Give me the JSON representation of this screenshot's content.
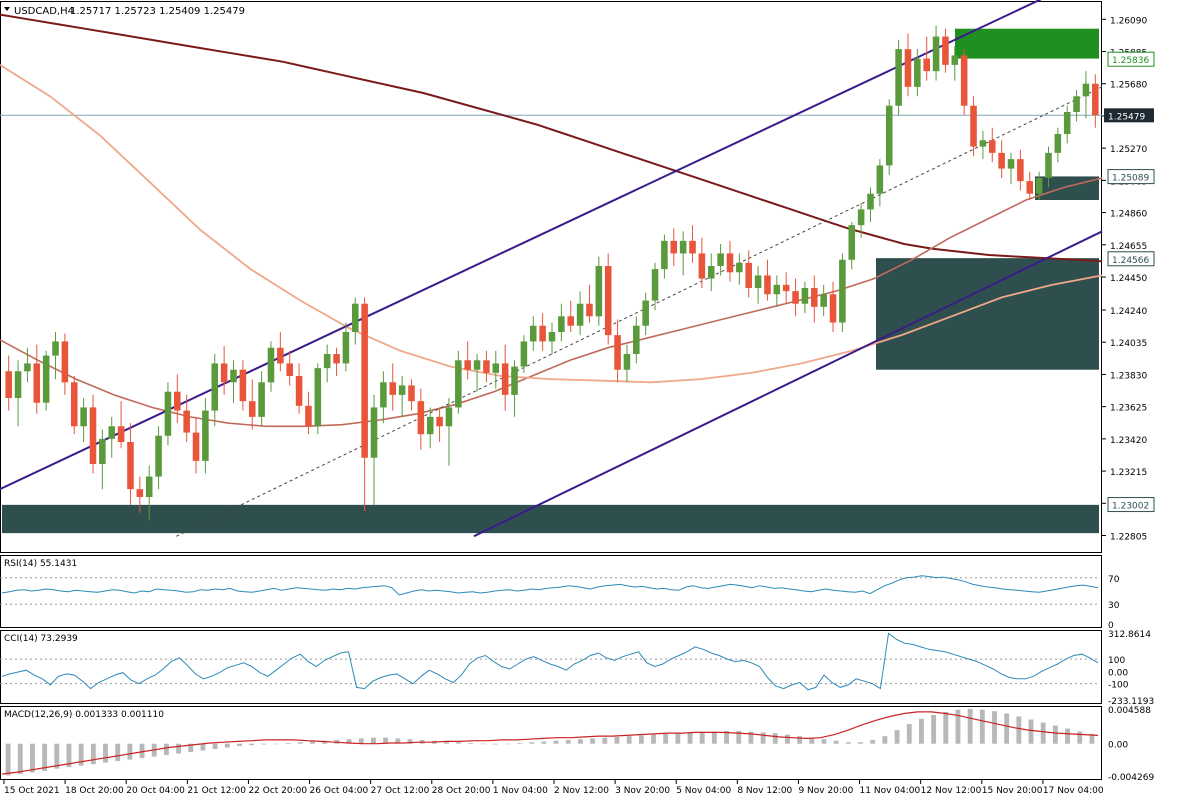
{
  "header": {
    "symbol": "USDCAD,H4",
    "ohlc": "1.25717 1.25723 1.25409 1.25479"
  },
  "colors": {
    "background": "#ffffff",
    "bull_candle": "#5a9a3c",
    "bear_candle": "#e8553a",
    "ma_long": "#7a1a1a",
    "ma_mid": "#c06a5a",
    "ma_light": "#f0a888",
    "channel": "#3b1a8c",
    "zone_dark": "#2f4f4f",
    "zone_green": "#1f8f1f",
    "rsi_line": "#2a8ab8",
    "macd_hist": "#b8b8b8",
    "macd_signal": "#cc2222"
  },
  "price_axis": {
    "ticks": [
      "1.26090",
      "1.25885",
      "1.25680",
      "1.25475",
      "1.25270",
      "1.25065",
      "1.24860",
      "1.24655",
      "1.24450",
      "1.24240",
      "1.24035",
      "1.23830",
      "1.23625",
      "1.23420",
      "1.23215",
      "1.23010",
      "1.22805"
    ],
    "current_price": "1.25479",
    "level_labels": [
      "1.25836",
      "1.25089",
      "1.24566",
      "1.23002"
    ]
  },
  "time_axis": {
    "labels": [
      "15 Oct 2021",
      "18 Oct 20:00",
      "20 Oct 04:00",
      "21 Oct 12:00",
      "22 Oct 20:00",
      "26 Oct 04:00",
      "27 Oct 12:00",
      "28 Oct 20:00",
      "1 Nov 04:00",
      "2 Nov 12:00",
      "3 Nov 20:00",
      "5 Nov 04:00",
      "8 Nov 12:00",
      "9 Nov 20:00",
      "11 Nov 04:00",
      "12 Nov 12:00",
      "15 Nov 20:00",
      "17 Nov 04:00"
    ]
  },
  "rsi": {
    "label": "RSI(14) 55.1431",
    "levels": [
      "70",
      "30",
      "0"
    ],
    "values": [
      47,
      49,
      51,
      52,
      50,
      51,
      53,
      52,
      50,
      49,
      51,
      50,
      49,
      48,
      50,
      52,
      51,
      49,
      47,
      50,
      49,
      53,
      52,
      51,
      50,
      48,
      49,
      52,
      51,
      53,
      52,
      54,
      50,
      49,
      48,
      50,
      52,
      54,
      51,
      53,
      55,
      54,
      53,
      52,
      51,
      53,
      52,
      54,
      53,
      55,
      56,
      57,
      58,
      55,
      44,
      47,
      50,
      52,
      50,
      51,
      50,
      49,
      47,
      48,
      49,
      47,
      48,
      50,
      51,
      52,
      50,
      51,
      53,
      52,
      54,
      55,
      56,
      58,
      57,
      55,
      53,
      56,
      58,
      59,
      60,
      58,
      56,
      57,
      55,
      53,
      54,
      52,
      51,
      56,
      58,
      55,
      54,
      56,
      58,
      60,
      59,
      57,
      55,
      58,
      56,
      54,
      55,
      53,
      52,
      50,
      49,
      51,
      53,
      51,
      50,
      49,
      48,
      50,
      46,
      52,
      58,
      62,
      67,
      70,
      71,
      73,
      72,
      70,
      71,
      69,
      67,
      64,
      60,
      58,
      56,
      55,
      53,
      52,
      51,
      50,
      49,
      48,
      50,
      52,
      54,
      56,
      58,
      59,
      57,
      55
    ]
  },
  "cci": {
    "label": "CCI(14) 73.2939",
    "levels": [
      "312.8614",
      "100",
      "0.00",
      "-100",
      "-233.1193"
    ],
    "values": [
      -40,
      -20,
      -5,
      10,
      -30,
      -60,
      -110,
      -40,
      -20,
      -30,
      -80,
      -140,
      -90,
      -60,
      -30,
      -10,
      -70,
      -100,
      -60,
      -30,
      20,
      80,
      110,
      50,
      -20,
      -60,
      -40,
      -10,
      30,
      50,
      70,
      40,
      -10,
      -40,
      10,
      60,
      110,
      140,
      80,
      40,
      90,
      120,
      150,
      160,
      -130,
      -140,
      -80,
      -50,
      -30,
      -20,
      -60,
      -100,
      -40,
      10,
      -20,
      -60,
      -90,
      -30,
      60,
      110,
      130,
      80,
      40,
      20,
      60,
      100,
      120,
      90,
      60,
      40,
      10,
      60,
      90,
      130,
      150,
      110,
      90,
      120,
      140,
      160,
      70,
      40,
      60,
      100,
      130,
      160,
      200,
      180,
      150,
      130,
      100,
      80,
      90,
      70,
      40,
      -50,
      -120,
      -140,
      -110,
      -90,
      -150,
      -130,
      -30,
      -90,
      -130,
      -110,
      -60,
      -80,
      -100,
      -140,
      310,
      260,
      230,
      220,
      200,
      180,
      170,
      160,
      140,
      120,
      100,
      80,
      50,
      20,
      -20,
      -50,
      -60,
      -60,
      -40,
      0,
      30,
      60,
      100,
      130,
      140,
      110,
      70
    ]
  },
  "macd": {
    "label": "MACD(12,26,9) 0.001333 0.001110",
    "levels": [
      "0.004588",
      "0.00",
      "-0.004269"
    ],
    "hist": [
      -0.0042,
      -0.004,
      -0.0038,
      -0.0036,
      -0.0033,
      -0.0031,
      -0.0029,
      -0.0027,
      -0.0025,
      -0.0023,
      -0.0021,
      -0.0019,
      -0.0017,
      -0.0015,
      -0.0013,
      -0.0011,
      -0.0009,
      -0.0007,
      -0.0005,
      -0.0003,
      -0.0002,
      -0.0001,
      0.0,
      0.0001,
      0.0002,
      0.0003,
      0.0004,
      0.0005,
      0.0006,
      0.0007,
      0.0008,
      0.0008,
      0.0007,
      0.0006,
      0.0005,
      0.0004,
      0.0003,
      0.0002,
      0.0001,
      0.0,
      -0.0001,
      0.0,
      0.0001,
      0.0002,
      0.0003,
      0.0004,
      0.0005,
      0.0006,
      0.0007,
      0.0008,
      0.0009,
      0.001,
      0.0011,
      0.0012,
      0.0013,
      0.0014,
      0.0015,
      0.0016,
      0.0016,
      0.0017,
      0.0017,
      0.0016,
      0.0015,
      0.0014,
      0.0012,
      0.001,
      0.0008,
      0.0006,
      0.0004,
      0.0002,
      0.0002,
      0.0005,
      0.001,
      0.0018,
      0.0026,
      0.0033,
      0.0038,
      0.0042,
      0.0045,
      0.0046,
      0.0045,
      0.0043,
      0.004,
      0.0036,
      0.0032,
      0.0028,
      0.0024,
      0.002,
      0.0016,
      0.0013
    ],
    "signal": [
      -0.004,
      -0.0038,
      -0.0035,
      -0.0032,
      -0.0029,
      -0.0026,
      -0.0023,
      -0.002,
      -0.0017,
      -0.0014,
      -0.0011,
      -0.0008,
      -0.0005,
      -0.0003,
      -0.0001,
      0.0001,
      0.0002,
      0.0003,
      0.0004,
      0.0005,
      0.0005,
      0.0005,
      0.0004,
      0.0003,
      0.0002,
      0.0001,
      0.0,
      0.0,
      0.0001,
      0.0001,
      0.0002,
      0.0002,
      0.0003,
      0.0003,
      0.0004,
      0.0004,
      0.0005,
      0.0005,
      0.0006,
      0.0007,
      0.0008,
      0.0008,
      0.0009,
      0.001,
      0.001,
      0.0011,
      0.0012,
      0.0013,
      0.0014,
      0.0014,
      0.0015,
      0.0015,
      0.0015,
      0.0014,
      0.0013,
      0.0011,
      0.0009,
      0.0008,
      0.0007,
      0.0008,
      0.0012,
      0.0018,
      0.0025,
      0.0031,
      0.0036,
      0.004,
      0.0042,
      0.0042,
      0.004,
      0.0037,
      0.0033,
      0.0029,
      0.0025,
      0.0021,
      0.0018,
      0.0016,
      0.0014,
      0.0013,
      0.0012,
      0.0011
    ]
  },
  "chart_data": {
    "type": "candlestick",
    "price_ylim": [
      1.227,
      1.262
    ],
    "grid": false,
    "candles": [
      [
        1.2385,
        1.2395,
        1.236,
        1.2368
      ],
      [
        1.2368,
        1.2392,
        1.235,
        1.2385
      ],
      [
        1.2385,
        1.24,
        1.2378,
        1.239
      ],
      [
        1.239,
        1.2402,
        1.2358,
        1.2365
      ],
      [
        1.2365,
        1.2398,
        1.236,
        1.2395
      ],
      [
        1.2395,
        1.241,
        1.238,
        1.2404
      ],
      [
        1.2404,
        1.2409,
        1.237,
        1.2378
      ],
      [
        1.2378,
        1.2382,
        1.2345,
        1.235
      ],
      [
        1.235,
        1.2368,
        1.234,
        1.2362
      ],
      [
        1.2362,
        1.237,
        1.232,
        1.2326
      ],
      [
        1.2326,
        1.2348,
        1.231,
        1.2342
      ],
      [
        1.2342,
        1.2356,
        1.233,
        1.235
      ],
      [
        1.235,
        1.2366,
        1.2336,
        1.234
      ],
      [
        1.234,
        1.2352,
        1.23,
        1.231
      ],
      [
        1.231,
        1.2318,
        1.2295,
        1.2305
      ],
      [
        1.2305,
        1.2325,
        1.229,
        1.2318
      ],
      [
        1.2318,
        1.235,
        1.231,
        1.2344
      ],
      [
        1.2344,
        1.2378,
        1.2338,
        1.2372
      ],
      [
        1.2372,
        1.2383,
        1.2352,
        1.236
      ],
      [
        1.236,
        1.237,
        1.234,
        1.2346
      ],
      [
        1.2346,
        1.2356,
        1.232,
        1.2328
      ],
      [
        1.2328,
        1.2368,
        1.232,
        1.236
      ],
      [
        1.236,
        1.2396,
        1.235,
        1.239
      ],
      [
        1.239,
        1.2401,
        1.237,
        1.2378
      ],
      [
        1.2378,
        1.2392,
        1.2365,
        1.2386
      ],
      [
        1.2386,
        1.2392,
        1.236,
        1.2366
      ],
      [
        1.2366,
        1.238,
        1.2348,
        1.2356
      ],
      [
        1.2356,
        1.2385,
        1.235,
        1.2378
      ],
      [
        1.2378,
        1.2404,
        1.2372,
        1.24
      ],
      [
        1.24,
        1.241,
        1.2385,
        1.239
      ],
      [
        1.239,
        1.2398,
        1.2376,
        1.2382
      ],
      [
        1.2382,
        1.239,
        1.2358,
        1.2363
      ],
      [
        1.2363,
        1.2372,
        1.2345,
        1.235
      ],
      [
        1.235,
        1.239,
        1.2345,
        1.2387
      ],
      [
        1.2387,
        1.2402,
        1.2378,
        1.2396
      ],
      [
        1.2396,
        1.24,
        1.2382,
        1.239
      ],
      [
        1.239,
        1.2416,
        1.2385,
        1.241
      ],
      [
        1.241,
        1.2432,
        1.2402,
        1.2428
      ],
      [
        1.2428,
        1.2432,
        1.2296,
        1.233
      ],
      [
        1.233,
        1.237,
        1.23,
        1.2362
      ],
      [
        1.2362,
        1.2385,
        1.2352,
        1.2378
      ],
      [
        1.2378,
        1.239,
        1.236,
        1.237
      ],
      [
        1.237,
        1.2382,
        1.2356,
        1.2376
      ],
      [
        1.2376,
        1.238,
        1.236,
        1.2366
      ],
      [
        1.2366,
        1.2374,
        1.2335,
        1.2345
      ],
      [
        1.2345,
        1.2362,
        1.2336,
        1.2356
      ],
      [
        1.2356,
        1.2362,
        1.234,
        1.235
      ],
      [
        1.235,
        1.2368,
        1.2325,
        1.2362
      ],
      [
        1.2362,
        1.2398,
        1.2358,
        1.2392
      ],
      [
        1.2392,
        1.2404,
        1.238,
        1.2386
      ],
      [
        1.2386,
        1.2396,
        1.2372,
        1.2392
      ],
      [
        1.2392,
        1.2398,
        1.2378,
        1.2384
      ],
      [
        1.2384,
        1.2398,
        1.2374,
        1.239
      ],
      [
        1.239,
        1.2402,
        1.236,
        1.237
      ],
      [
        1.237,
        1.2392,
        1.2356,
        1.2388
      ],
      [
        1.2388,
        1.2408,
        1.2384,
        1.2404
      ],
      [
        1.2404,
        1.242,
        1.2398,
        1.2414
      ],
      [
        1.2414,
        1.2422,
        1.2398,
        1.2404
      ],
      [
        1.2404,
        1.2416,
        1.2396,
        1.241
      ],
      [
        1.241,
        1.2428,
        1.2404,
        1.242
      ],
      [
        1.242,
        1.243,
        1.241,
        1.2414
      ],
      [
        1.2414,
        1.2436,
        1.2408,
        1.2428
      ],
      [
        1.2428,
        1.244,
        1.2416,
        1.242
      ],
      [
        1.242,
        1.2458,
        1.2414,
        1.2452
      ],
      [
        1.2452,
        1.246,
        1.2402,
        1.2408
      ],
      [
        1.2408,
        1.2418,
        1.2378,
        1.2386
      ],
      [
        1.2386,
        1.2402,
        1.2378,
        1.2396
      ],
      [
        1.2396,
        1.242,
        1.239,
        1.2414
      ],
      [
        1.2414,
        1.2435,
        1.2408,
        1.243
      ],
      [
        1.243,
        1.2454,
        1.2424,
        1.245
      ],
      [
        1.245,
        1.2472,
        1.2444,
        1.2468
      ],
      [
        1.2468,
        1.2476,
        1.2452,
        1.246
      ],
      [
        1.246,
        1.2474,
        1.2446,
        1.2468
      ],
      [
        1.2468,
        1.2478,
        1.2454,
        1.246
      ],
      [
        1.246,
        1.247,
        1.2438,
        1.2444
      ],
      [
        1.2444,
        1.246,
        1.2436,
        1.2452
      ],
      [
        1.2452,
        1.2466,
        1.2446,
        1.246
      ],
      [
        1.246,
        1.2468,
        1.2442,
        1.2448
      ],
      [
        1.2448,
        1.246,
        1.244,
        1.2454
      ],
      [
        1.2454,
        1.2462,
        1.2432,
        1.2438
      ],
      [
        1.2438,
        1.2452,
        1.2428,
        1.2446
      ],
      [
        1.2446,
        1.2456,
        1.243,
        1.2434
      ],
      [
        1.2434,
        1.2446,
        1.2426,
        1.244
      ],
      [
        1.244,
        1.2448,
        1.2428,
        1.2436
      ],
      [
        1.2436,
        1.2444,
        1.242,
        1.2428
      ],
      [
        1.2428,
        1.2442,
        1.2422,
        1.2438
      ],
      [
        1.2438,
        1.2446,
        1.2416,
        1.2426
      ],
      [
        1.2426,
        1.244,
        1.242,
        1.2434
      ],
      [
        1.2434,
        1.2442,
        1.241,
        1.2416
      ],
      [
        1.2416,
        1.246,
        1.241,
        1.2456
      ],
      [
        1.2456,
        1.248,
        1.245,
        1.2478
      ],
      [
        1.2478,
        1.2492,
        1.247,
        1.2488
      ],
      [
        1.2488,
        1.2502,
        1.248,
        1.2498
      ],
      [
        1.2498,
        1.252,
        1.249,
        1.2516
      ],
      [
        1.2516,
        1.2558,
        1.251,
        1.2554
      ],
      [
        1.2554,
        1.2596,
        1.2548,
        1.259
      ],
      [
        1.259,
        1.26,
        1.256,
        1.2566
      ],
      [
        1.2566,
        1.259,
        1.256,
        1.2584
      ],
      [
        1.2584,
        1.2598,
        1.257,
        1.2576
      ],
      [
        1.2576,
        1.2605,
        1.257,
        1.2598
      ],
      [
        1.2598,
        1.2603,
        1.2575,
        1.258
      ],
      [
        1.258,
        1.2592,
        1.257,
        1.2586
      ],
      [
        1.2586,
        1.259,
        1.2548,
        1.2554
      ],
      [
        1.2554,
        1.256,
        1.2522,
        1.2528
      ],
      [
        1.2528,
        1.2538,
        1.252,
        1.2532
      ],
      [
        1.2532,
        1.254,
        1.2518,
        1.2524
      ],
      [
        1.2524,
        1.2532,
        1.2508,
        1.2514
      ],
      [
        1.2514,
        1.2524,
        1.2504,
        1.252
      ],
      [
        1.252,
        1.2526,
        1.25,
        1.2506
      ],
      [
        1.2506,
        1.2512,
        1.2494,
        1.2498
      ],
      [
        1.2498,
        1.2512,
        1.2494,
        1.2508
      ],
      [
        1.2508,
        1.2528,
        1.2502,
        1.2524
      ],
      [
        1.2524,
        1.254,
        1.2518,
        1.2536
      ],
      [
        1.2536,
        1.2554,
        1.253,
        1.255
      ],
      [
        1.255,
        1.2564,
        1.2544,
        1.256
      ],
      [
        1.256,
        1.2576,
        1.2546,
        1.2568
      ],
      [
        1.2568,
        1.2574,
        1.254,
        1.2548
      ]
    ],
    "ma_long": [
      1.2612,
      1.2609,
      1.2606,
      1.2603,
      1.26,
      1.2597,
      1.2594,
      1.2591,
      1.2588,
      1.2585,
      1.2582,
      1.2578,
      1.2574,
      1.257,
      1.2566,
      1.2562,
      1.2557,
      1.2552,
      1.2547,
      1.2542,
      1.2536,
      1.253,
      1.2524,
      1.2518,
      1.2512,
      1.2506,
      1.25,
      1.2494,
      1.2488,
      1.2482,
      1.2476,
      1.2471,
      1.2466,
      1.2463,
      1.2461,
      1.2459,
      1.2458,
      1.2457,
      1.2456,
      1.2455
    ],
    "ma_mid": [
      1.2405,
      1.2392,
      1.238,
      1.237,
      1.2362,
      1.2356,
      1.2352,
      1.235,
      1.235,
      1.2351,
      1.2354,
      1.2358,
      1.2364,
      1.2372,
      1.2382,
      1.2392,
      1.24,
      1.2406,
      1.2412,
      1.2418,
      1.2424,
      1.243,
      1.2436,
      1.2444,
      1.2456,
      1.247,
      1.2482,
      1.2494,
      1.2502,
      1.2508
    ],
    "ma_light": [
      1.258,
      1.256,
      1.2535,
      1.2505,
      1.2475,
      1.245,
      1.243,
      1.2412,
      1.2398,
      1.2388,
      1.2382,
      1.238,
      1.2379,
      1.2378,
      1.238,
      1.2384,
      1.239,
      1.2398,
      1.2408,
      1.242,
      1.2432,
      1.244,
      1.2446
    ],
    "channel": {
      "upper": [
        [
          0,
          1.231
        ],
        [
          1.0,
          1.264
        ]
      ],
      "lower": [
        [
          0.43,
          1.228
        ],
        [
          1.0,
          1.2474
        ]
      ],
      "mid": [
        [
          0.16,
          1.228
        ],
        [
          1.0,
          1.2566
        ]
      ]
    },
    "zones": [
      {
        "name": "top-supply",
        "from": 1.2584,
        "to": 1.2603
      },
      {
        "name": "mid-block",
        "from": 1.2494,
        "to": 1.2509
      },
      {
        "name": "demand-block",
        "from": 1.2386,
        "to": 1.2457
      },
      {
        "name": "bottom-support",
        "from": 1.2282,
        "to": 1.23
      }
    ]
  }
}
